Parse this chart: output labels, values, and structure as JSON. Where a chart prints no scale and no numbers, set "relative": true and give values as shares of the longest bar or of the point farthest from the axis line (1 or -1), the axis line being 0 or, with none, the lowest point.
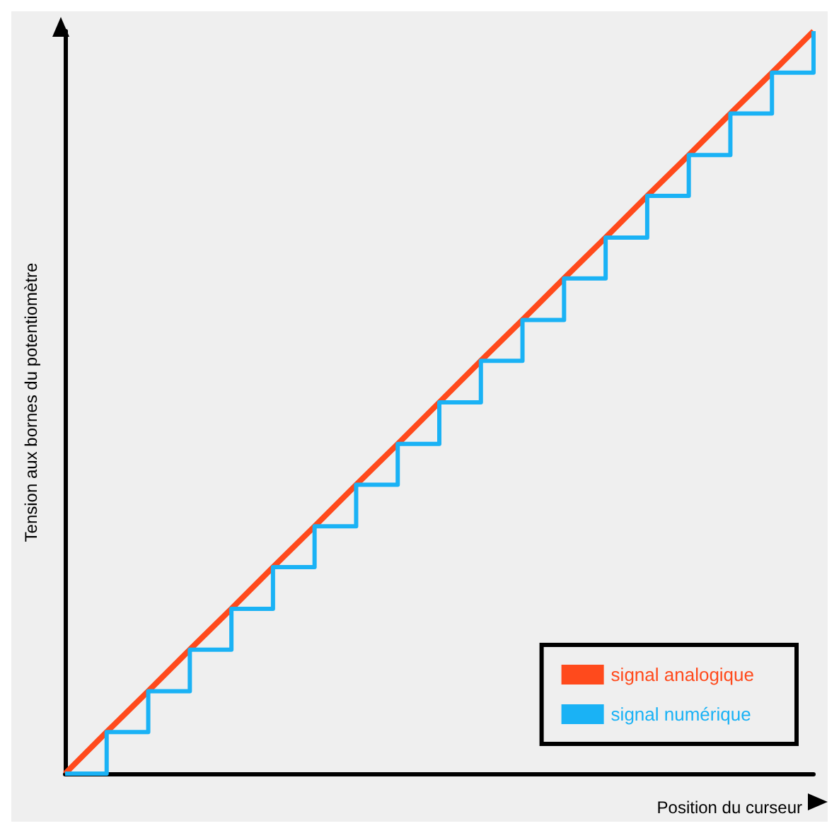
{
  "chart_data": {
    "type": "line",
    "xlabel": "Position du curseur",
    "ylabel": "Tension aux bornes du potentiomètre",
    "categories": [
      null,
      null,
      null,
      null,
      null,
      null,
      null,
      null,
      null,
      null,
      null,
      null,
      null,
      null,
      null,
      null,
      null,
      null,
      null
    ],
    "relative": true,
    "grid": false,
    "marker": "none",
    "legend": "bottom right",
    "series": [
      {
        "name": "signal analogique",
        "type": "line",
        "color": "#ff4a1c",
        "values": [
          0,
          0.056,
          0.111,
          0.167,
          0.222,
          0.278,
          0.333,
          0.389,
          0.444,
          0.5,
          0.556,
          0.611,
          0.667,
          0.722,
          0.778,
          0.833,
          0.889,
          0.944,
          1
        ]
      },
      {
        "name": "signal numérique",
        "type": "step",
        "color": "#1ab2f5",
        "values": [
          0,
          0.056,
          0.111,
          0.167,
          0.222,
          0.278,
          0.333,
          0.389,
          0.444,
          0.5,
          0.556,
          0.611,
          0.667,
          0.722,
          0.778,
          0.833,
          0.889,
          0.944,
          1
        ]
      }
    ]
  }
}
